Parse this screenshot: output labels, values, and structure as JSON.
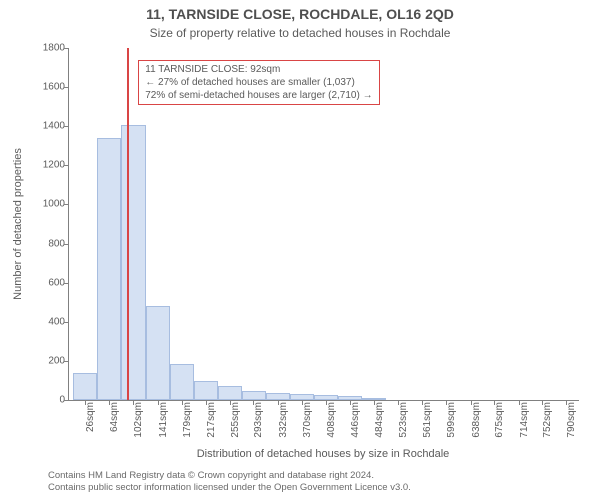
{
  "title": "11, TARNSIDE CLOSE, ROCHDALE, OL16 2QD",
  "subtitle": "Size of property relative to detached houses in Rochdale",
  "xlabel": "Distribution of detached houses by size in Rochdale",
  "ylabel": "Number of detached properties",
  "chart": {
    "type": "histogram",
    "background_color": "#ffffff",
    "axis_color": "#808080",
    "bar_fill": "#d5e1f3",
    "bar_stroke": "#a7bde0",
    "ref_line_color": "#d94545",
    "annotation_border": "#d94545",
    "text_color": "#5a5a5a",
    "tick_fontsize": 10,
    "label_fontsize": 11,
    "title_fontsize": 14,
    "subtitle_fontsize": 12,
    "x_min": 0,
    "x_max": 810,
    "y_min": 0,
    "y_max": 1800,
    "y_ticks": [
      0,
      200,
      400,
      600,
      800,
      1000,
      1200,
      1400,
      1600,
      1800
    ],
    "x_tick_labels": [
      "26sqm",
      "64sqm",
      "102sqm",
      "141sqm",
      "179sqm",
      "217sqm",
      "255sqm",
      "293sqm",
      "332sqm",
      "370sqm",
      "408sqm",
      "446sqm",
      "484sqm",
      "523sqm",
      "561sqm",
      "599sqm",
      "638sqm",
      "675sqm",
      "714sqm",
      "752sqm",
      "790sqm"
    ],
    "x_tick_positions": [
      26,
      64,
      102,
      141,
      179,
      217,
      255,
      293,
      332,
      370,
      408,
      446,
      484,
      523,
      561,
      599,
      638,
      675,
      714,
      752,
      790
    ],
    "bin_edges": [
      7,
      45,
      83,
      122,
      160,
      198,
      236,
      274,
      313,
      351,
      389,
      427,
      465,
      503,
      542,
      580,
      618,
      656,
      695,
      733,
      771,
      810
    ],
    "counts": [
      140,
      1340,
      1405,
      480,
      185,
      95,
      70,
      45,
      38,
      30,
      25,
      22,
      12,
      0,
      0,
      0,
      0,
      0,
      0,
      0,
      0
    ],
    "reference_x": 92,
    "annotation": {
      "lines": [
        "11 TARNSIDE CLOSE: 92sqm",
        "← 27% of detached houses are smaller (1,037)",
        "72% of semi-detached houses are larger (2,710) →"
      ],
      "x": 110,
      "y_top": 1740
    }
  },
  "footer_lines": [
    "Contains HM Land Registry data © Crown copyright and database right 2024.",
    "Contains public sector information licensed under the Open Government Licence v3.0."
  ]
}
